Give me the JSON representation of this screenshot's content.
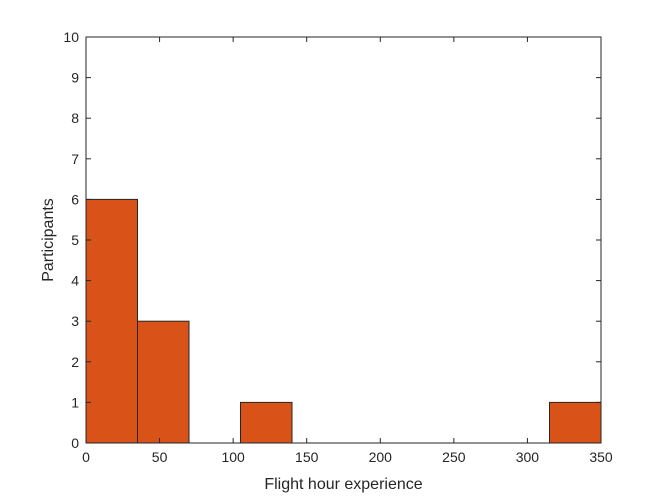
{
  "chart_data": {
    "type": "bar",
    "subtype": "histogram",
    "bins": [
      {
        "start": 0,
        "end": 35,
        "value": 6
      },
      {
        "start": 35,
        "end": 70,
        "value": 3
      },
      {
        "start": 70,
        "end": 105,
        "value": 0
      },
      {
        "start": 105,
        "end": 140,
        "value": 1
      },
      {
        "start": 140,
        "end": 175,
        "value": 0
      },
      {
        "start": 175,
        "end": 210,
        "value": 0
      },
      {
        "start": 210,
        "end": 245,
        "value": 0
      },
      {
        "start": 245,
        "end": 280,
        "value": 0
      },
      {
        "start": 280,
        "end": 315,
        "value": 0
      },
      {
        "start": 315,
        "end": 350,
        "value": 1
      }
    ],
    "xlabel": "Flight hour experience",
    "ylabel": "Participants",
    "xlim": [
      0,
      350
    ],
    "ylim": [
      0,
      10
    ],
    "xticks": [
      "0",
      "50",
      "100",
      "150",
      "200",
      "250",
      "300",
      "350"
    ],
    "yticks": [
      "0",
      "1",
      "2",
      "3",
      "4",
      "5",
      "6",
      "7",
      "8",
      "9",
      "10"
    ],
    "grid": false,
    "bar_color": "#D95319",
    "edge_color": "#262626"
  }
}
